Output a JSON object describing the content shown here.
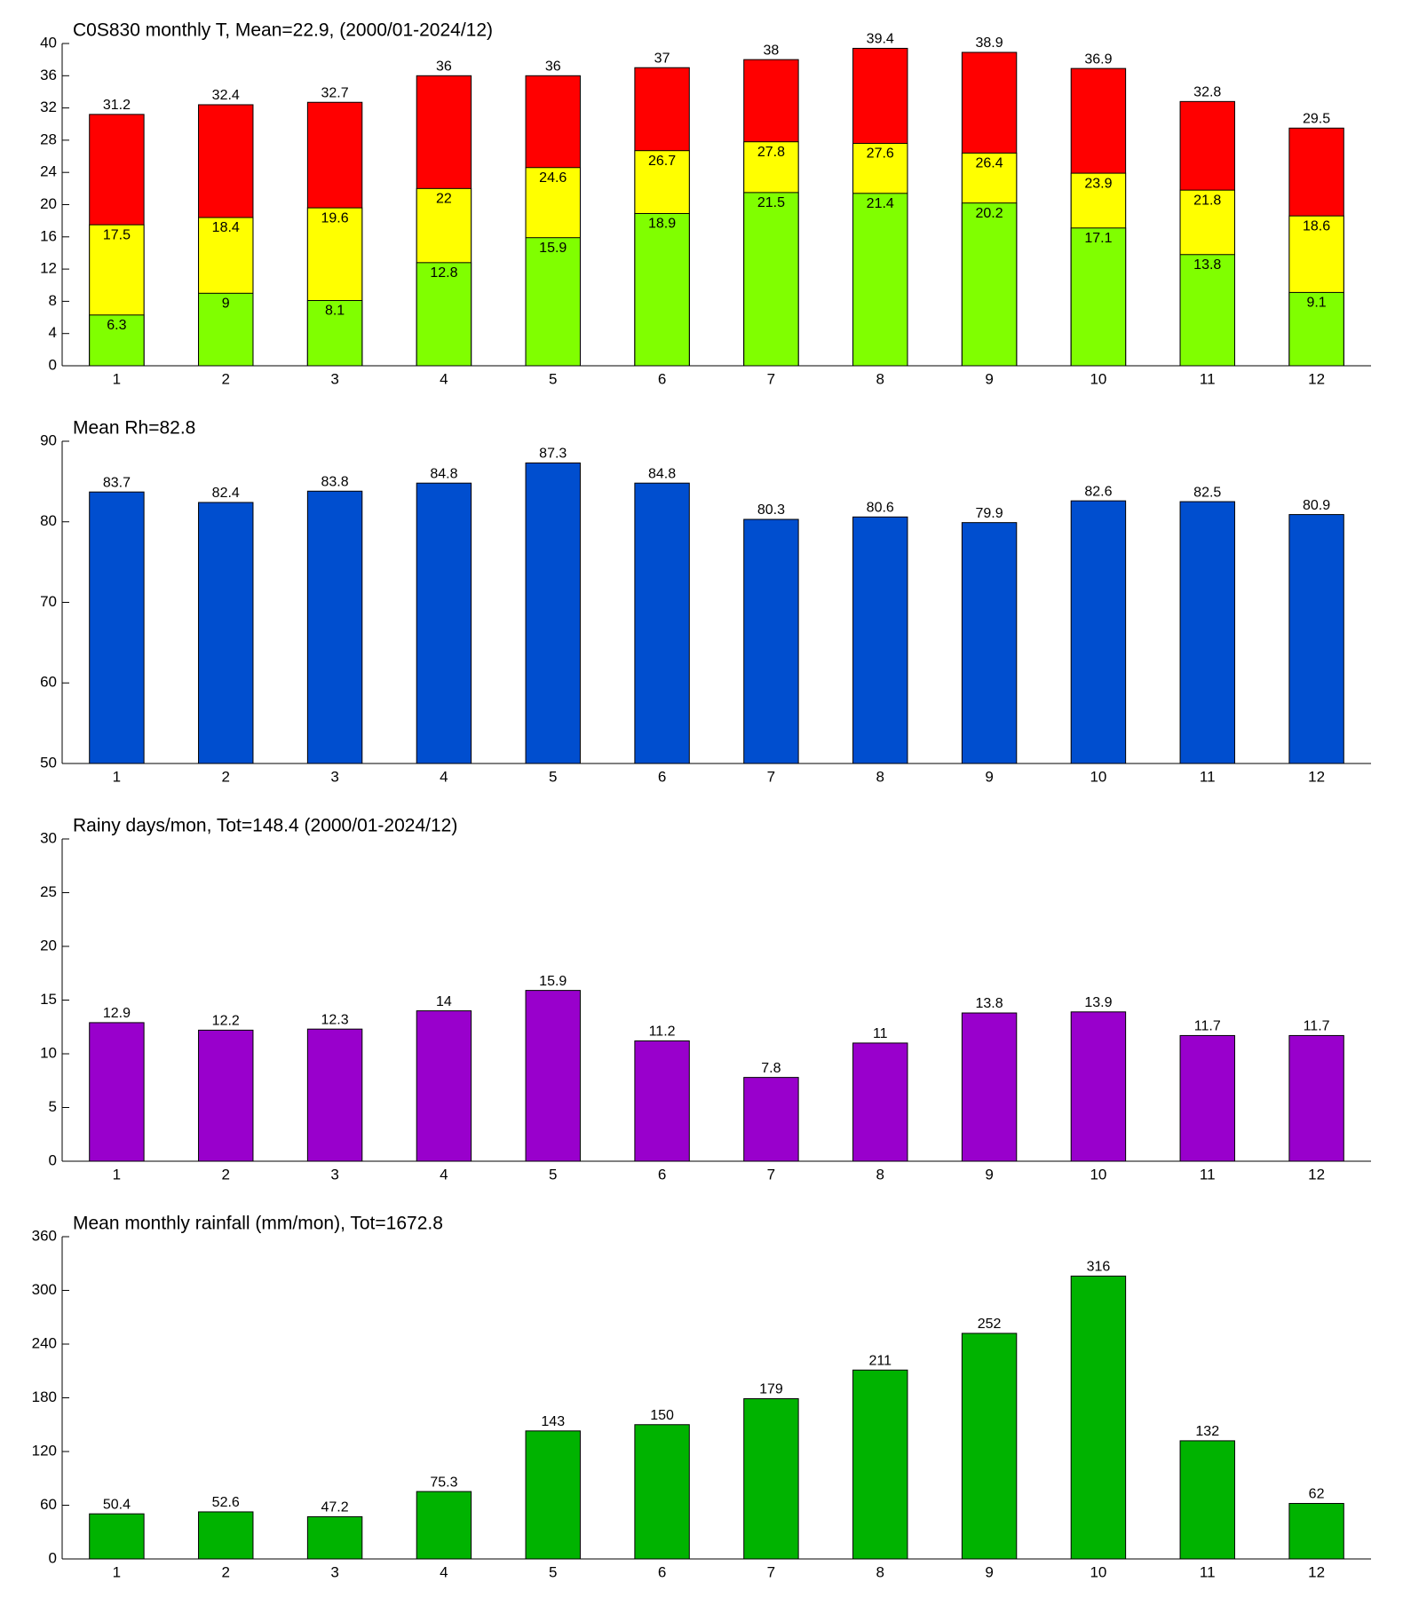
{
  "chart_data": [
    {
      "type": "bar",
      "title": "C0S830 monthly T, Mean=22.9, (2000/01-2024/12)",
      "categories": [
        "1",
        "2",
        "3",
        "4",
        "5",
        "6",
        "7",
        "8",
        "9",
        "10",
        "11",
        "12"
      ],
      "series": [
        {
          "color": "#ff0000",
          "values": [
            31.2,
            32.4,
            32.7,
            36,
            36,
            37,
            38,
            39.4,
            38.9,
            36.9,
            32.8,
            29.5
          ]
        },
        {
          "color": "#ffff00",
          "values": [
            17.5,
            18.4,
            19.6,
            22,
            24.6,
            26.7,
            27.8,
            27.6,
            26.4,
            23.9,
            21.8,
            18.6
          ]
        },
        {
          "color": "#80ff00",
          "values": [
            6.3,
            9,
            8.1,
            12.8,
            15.9,
            18.9,
            21.5,
            21.4,
            20.2,
            17.1,
            13.8,
            9.1
          ]
        }
      ],
      "ylim": [
        0,
        40
      ],
      "yticks": [
        0,
        4,
        8,
        12,
        16,
        20,
        24,
        28,
        32,
        36,
        40
      ]
    },
    {
      "type": "bar",
      "title": "Mean Rh=82.8",
      "categories": [
        "1",
        "2",
        "3",
        "4",
        "5",
        "6",
        "7",
        "8",
        "9",
        "10",
        "11",
        "12"
      ],
      "series": [
        {
          "color": "#004ecf",
          "values": [
            83.7,
            82.4,
            83.8,
            84.8,
            87.3,
            84.8,
            80.3,
            80.6,
            79.9,
            82.6,
            82.5,
            80.9
          ]
        }
      ],
      "ylim": [
        50,
        90
      ],
      "yticks": [
        50,
        60,
        70,
        80,
        90
      ]
    },
    {
      "type": "bar",
      "title": "Rainy days/mon, Tot=148.4 (2000/01-2024/12)",
      "categories": [
        "1",
        "2",
        "3",
        "4",
        "5",
        "6",
        "7",
        "8",
        "9",
        "10",
        "11",
        "12"
      ],
      "series": [
        {
          "color": "#9900cc",
          "values": [
            12.9,
            12.2,
            12.3,
            14,
            15.9,
            11.2,
            7.8,
            11,
            13.8,
            13.9,
            11.7,
            11.7
          ]
        }
      ],
      "ylim": [
        0,
        30
      ],
      "yticks": [
        0,
        5,
        10,
        15,
        20,
        25,
        30
      ]
    },
    {
      "type": "bar",
      "title": "Mean monthly rainfall (mm/mon), Tot=1672.8",
      "categories": [
        "1",
        "2",
        "3",
        "4",
        "5",
        "6",
        "7",
        "8",
        "9",
        "10",
        "11",
        "12"
      ],
      "series": [
        {
          "color": "#00b300",
          "values": [
            50.4,
            52.6,
            47.2,
            75.3,
            143,
            150,
            179,
            211,
            252,
            316,
            132,
            62
          ]
        }
      ],
      "ylim": [
        0,
        360
      ],
      "yticks": [
        0,
        60,
        120,
        180,
        240,
        300,
        360
      ]
    }
  ]
}
